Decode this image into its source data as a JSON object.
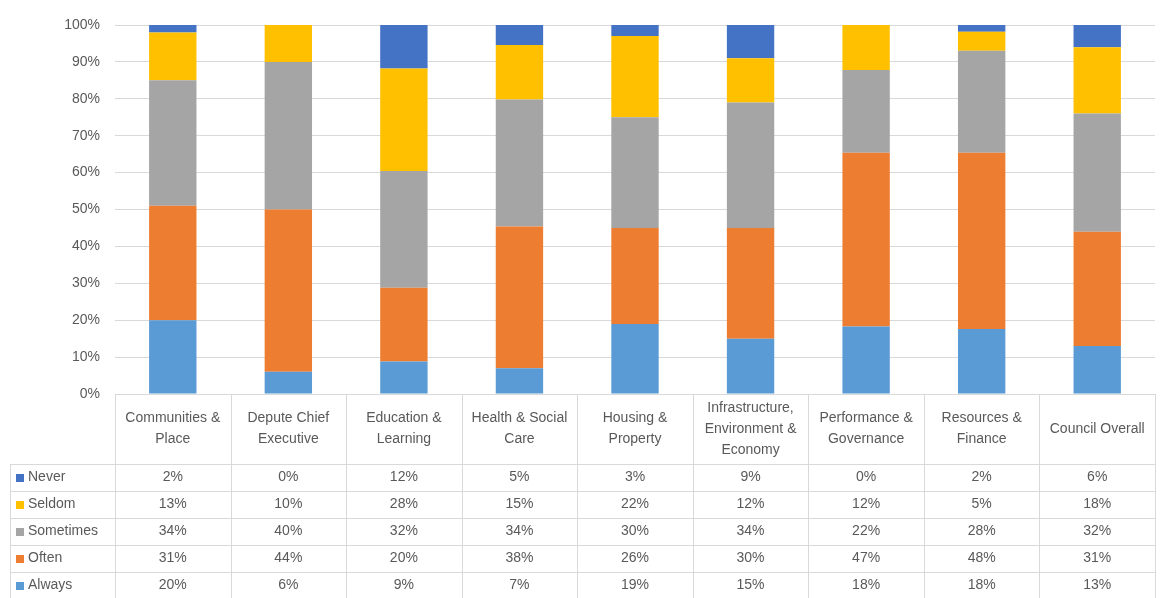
{
  "chart_data": {
    "type": "bar",
    "stacked": true,
    "categories": [
      "Communities & Place",
      "Depute Chief Executive",
      "Education & Learning",
      "Health & Social Care",
      "Housing & Property",
      "Infrastructure, Environment & Economy",
      "Performance & Governance",
      "Resources & Finance",
      "Council Overall"
    ],
    "series": [
      {
        "name": "Always",
        "color": "#5b9bd5",
        "values": [
          20,
          6,
          8.8,
          7,
          19,
          15,
          18.3,
          17.6,
          13
        ],
        "value_labels": [
          "20%",
          "6%",
          "9%",
          "7%",
          "19%",
          "15%",
          "18%",
          "18%",
          "13%"
        ]
      },
      {
        "name": "Often",
        "color": "#ed7d31",
        "values": [
          31,
          44,
          20,
          38.4,
          26,
          30,
          47.1,
          47.8,
          31
        ],
        "value_labels": [
          "31%",
          "44%",
          "20%",
          "38%",
          "26%",
          "30%",
          "47%",
          "48%",
          "31%"
        ]
      },
      {
        "name": "Sometimes",
        "color": "#a5a5a5",
        "values": [
          34,
          40,
          31.6,
          34.4,
          30,
          34,
          22.4,
          27.6,
          32
        ],
        "value_labels": [
          "34%",
          "40%",
          "32%",
          "34%",
          "30%",
          "34%",
          "22%",
          "28%",
          "32%"
        ]
      },
      {
        "name": "Seldom",
        "color": "#ffc000",
        "values": [
          13,
          10,
          27.8,
          14.8,
          22,
          12,
          12.2,
          5.2,
          18
        ],
        "value_labels": [
          "13%",
          "10%",
          "28%",
          "15%",
          "22%",
          "12%",
          "12%",
          "5%",
          "18%"
        ]
      },
      {
        "name": "Never",
        "color": "#4472c4",
        "values": [
          2,
          0,
          11.8,
          5.4,
          3,
          9,
          0,
          1.8,
          6
        ],
        "value_labels": [
          "2%",
          "0%",
          "12%",
          "5%",
          "3%",
          "9%",
          "0%",
          "2%",
          "6%"
        ]
      }
    ],
    "ylim": [
      0,
      100
    ],
    "yticks": [
      {
        "value": 0,
        "label": "0%"
      },
      {
        "value": 10,
        "label": "10%"
      },
      {
        "value": 20,
        "label": "20%"
      },
      {
        "value": 30,
        "label": "30%"
      },
      {
        "value": 40,
        "label": "40%"
      },
      {
        "value": 50,
        "label": "50%"
      },
      {
        "value": 60,
        "label": "60%"
      },
      {
        "value": 70,
        "label": "70%"
      },
      {
        "value": 80,
        "label": "80%"
      },
      {
        "value": 90,
        "label": "90%"
      },
      {
        "value": 100,
        "label": "100%"
      }
    ],
    "grid": "y",
    "legend": "bottom left"
  }
}
